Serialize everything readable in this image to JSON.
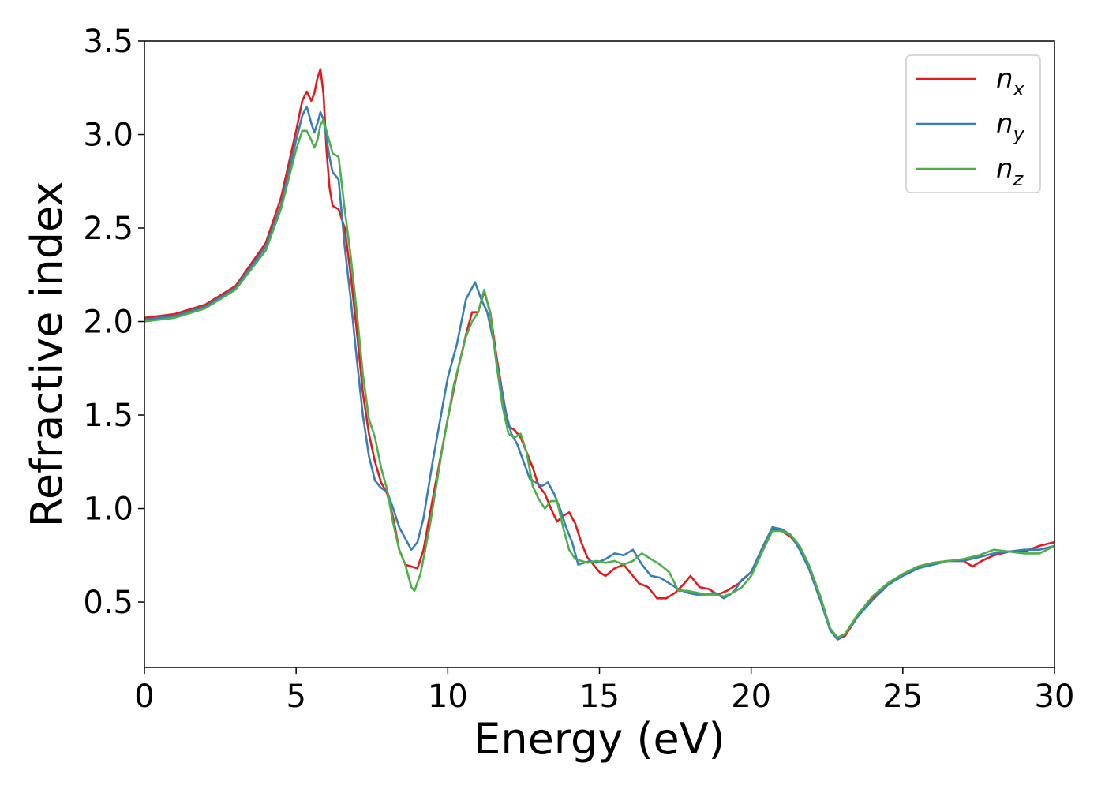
{
  "chart_data": {
    "type": "line",
    "title": "",
    "xlabel": "Energy (eV)",
    "ylabel": "Refractive index",
    "xlim": [
      0,
      30
    ],
    "ylim": [
      0.15,
      3.5
    ],
    "xticks": [
      0,
      5,
      10,
      15,
      20,
      25,
      30
    ],
    "xtick_labels": [
      "0",
      "5",
      "10",
      "15",
      "20",
      "25",
      "30"
    ],
    "yticks": [
      0.5,
      1.0,
      1.5,
      2.0,
      2.5,
      3.0,
      3.5
    ],
    "ytick_labels": [
      "0.5",
      "1.0",
      "1.5",
      "2.0",
      "2.5",
      "3.0",
      "3.5"
    ],
    "grid": false,
    "legend_position": "top-right",
    "series": [
      {
        "name": "n_x",
        "label_main": "n",
        "label_sub": "x",
        "color": "#e41a1c",
        "points": [
          [
            0,
            2.02
          ],
          [
            1,
            2.04
          ],
          [
            2,
            2.09
          ],
          [
            3,
            2.19
          ],
          [
            4,
            2.42
          ],
          [
            4.5,
            2.66
          ],
          [
            5,
            3.02
          ],
          [
            5.2,
            3.18
          ],
          [
            5.35,
            3.23
          ],
          [
            5.5,
            3.18
          ],
          [
            5.6,
            3.22
          ],
          [
            5.7,
            3.3
          ],
          [
            5.8,
            3.35
          ],
          [
            5.9,
            3.22
          ],
          [
            6.0,
            2.92
          ],
          [
            6.1,
            2.72
          ],
          [
            6.2,
            2.62
          ],
          [
            6.4,
            2.6
          ],
          [
            6.6,
            2.5
          ],
          [
            6.8,
            2.25
          ],
          [
            7.0,
            1.95
          ],
          [
            7.2,
            1.62
          ],
          [
            7.4,
            1.4
          ],
          [
            7.6,
            1.25
          ],
          [
            7.8,
            1.14
          ],
          [
            8.0,
            1.08
          ],
          [
            8.2,
            0.95
          ],
          [
            8.4,
            0.78
          ],
          [
            8.6,
            0.7
          ],
          [
            8.8,
            0.69
          ],
          [
            9.0,
            0.68
          ],
          [
            9.2,
            0.78
          ],
          [
            9.5,
            1.05
          ],
          [
            10.0,
            1.48
          ],
          [
            10.3,
            1.72
          ],
          [
            10.6,
            1.93
          ],
          [
            10.8,
            2.05
          ],
          [
            11.0,
            2.05
          ],
          [
            11.2,
            2.16
          ],
          [
            11.4,
            2.05
          ],
          [
            11.6,
            1.82
          ],
          [
            11.8,
            1.62
          ],
          [
            12.0,
            1.44
          ],
          [
            12.2,
            1.42
          ],
          [
            12.4,
            1.38
          ],
          [
            12.6,
            1.3
          ],
          [
            12.8,
            1.22
          ],
          [
            13.0,
            1.12
          ],
          [
            13.2,
            1.08
          ],
          [
            13.4,
            1.0
          ],
          [
            13.6,
            0.93
          ],
          [
            13.8,
            0.96
          ],
          [
            14.0,
            0.98
          ],
          [
            14.2,
            0.92
          ],
          [
            14.4,
            0.82
          ],
          [
            14.6,
            0.74
          ],
          [
            14.8,
            0.7
          ],
          [
            15.0,
            0.66
          ],
          [
            15.2,
            0.64
          ],
          [
            15.5,
            0.68
          ],
          [
            15.8,
            0.7
          ],
          [
            16.0,
            0.66
          ],
          [
            16.3,
            0.6
          ],
          [
            16.6,
            0.58
          ],
          [
            16.9,
            0.52
          ],
          [
            17.2,
            0.52
          ],
          [
            17.5,
            0.55
          ],
          [
            17.8,
            0.6
          ],
          [
            18.0,
            0.64
          ],
          [
            18.3,
            0.58
          ],
          [
            18.6,
            0.57
          ],
          [
            18.9,
            0.54
          ],
          [
            19.2,
            0.56
          ],
          [
            19.6,
            0.6
          ],
          [
            20.0,
            0.66
          ],
          [
            20.4,
            0.8
          ],
          [
            20.7,
            0.89
          ],
          [
            21.0,
            0.88
          ],
          [
            21.3,
            0.85
          ],
          [
            21.6,
            0.79
          ],
          [
            21.9,
            0.7
          ],
          [
            22.3,
            0.52
          ],
          [
            22.6,
            0.36
          ],
          [
            22.85,
            0.3
          ],
          [
            23.1,
            0.32
          ],
          [
            23.5,
            0.42
          ],
          [
            24.0,
            0.52
          ],
          [
            24.5,
            0.6
          ],
          [
            25.0,
            0.65
          ],
          [
            25.5,
            0.69
          ],
          [
            26.0,
            0.71
          ],
          [
            26.5,
            0.72
          ],
          [
            27.0,
            0.72
          ],
          [
            27.3,
            0.69
          ],
          [
            27.6,
            0.72
          ],
          [
            28.0,
            0.75
          ],
          [
            28.5,
            0.77
          ],
          [
            29.0,
            0.77
          ],
          [
            29.5,
            0.8
          ],
          [
            30.0,
            0.82
          ]
        ]
      },
      {
        "name": "n_y",
        "label_main": "n",
        "label_sub": "y",
        "color": "#377eb8",
        "points": [
          [
            0,
            2.01
          ],
          [
            1,
            2.03
          ],
          [
            2,
            2.08
          ],
          [
            3,
            2.18
          ],
          [
            4,
            2.4
          ],
          [
            4.5,
            2.62
          ],
          [
            5,
            2.97
          ],
          [
            5.2,
            3.1
          ],
          [
            5.35,
            3.15
          ],
          [
            5.5,
            3.06
          ],
          [
            5.6,
            3.01
          ],
          [
            5.7,
            3.06
          ],
          [
            5.8,
            3.12
          ],
          [
            5.9,
            3.08
          ],
          [
            6.0,
            2.98
          ],
          [
            6.1,
            2.88
          ],
          [
            6.2,
            2.8
          ],
          [
            6.4,
            2.76
          ],
          [
            6.6,
            2.4
          ],
          [
            6.8,
            2.12
          ],
          [
            7.0,
            1.8
          ],
          [
            7.2,
            1.5
          ],
          [
            7.4,
            1.28
          ],
          [
            7.6,
            1.15
          ],
          [
            7.8,
            1.11
          ],
          [
            8.0,
            1.09
          ],
          [
            8.2,
            1.0
          ],
          [
            8.4,
            0.9
          ],
          [
            8.6,
            0.84
          ],
          [
            8.8,
            0.78
          ],
          [
            9.0,
            0.82
          ],
          [
            9.2,
            0.95
          ],
          [
            9.5,
            1.25
          ],
          [
            10.0,
            1.7
          ],
          [
            10.3,
            1.88
          ],
          [
            10.6,
            2.12
          ],
          [
            10.9,
            2.21
          ],
          [
            11.1,
            2.12
          ],
          [
            11.3,
            2.05
          ],
          [
            11.5,
            1.9
          ],
          [
            11.7,
            1.7
          ],
          [
            11.9,
            1.52
          ],
          [
            12.1,
            1.4
          ],
          [
            12.3,
            1.34
          ],
          [
            12.5,
            1.25
          ],
          [
            12.7,
            1.16
          ],
          [
            12.9,
            1.14
          ],
          [
            13.1,
            1.12
          ],
          [
            13.3,
            1.14
          ],
          [
            13.5,
            1.08
          ],
          [
            13.7,
            1.0
          ],
          [
            13.9,
            0.9
          ],
          [
            14.1,
            0.82
          ],
          [
            14.3,
            0.7
          ],
          [
            14.5,
            0.71
          ],
          [
            14.7,
            0.72
          ],
          [
            14.9,
            0.71
          ],
          [
            15.2,
            0.73
          ],
          [
            15.5,
            0.76
          ],
          [
            15.8,
            0.75
          ],
          [
            16.1,
            0.78
          ],
          [
            16.4,
            0.7
          ],
          [
            16.7,
            0.64
          ],
          [
            17.0,
            0.63
          ],
          [
            17.3,
            0.6
          ],
          [
            17.6,
            0.57
          ],
          [
            17.9,
            0.55
          ],
          [
            18.2,
            0.54
          ],
          [
            18.5,
            0.54
          ],
          [
            18.8,
            0.55
          ],
          [
            19.1,
            0.52
          ],
          [
            19.4,
            0.55
          ],
          [
            19.7,
            0.62
          ],
          [
            20.0,
            0.66
          ],
          [
            20.4,
            0.8
          ],
          [
            20.7,
            0.9
          ],
          [
            21.0,
            0.89
          ],
          [
            21.3,
            0.86
          ],
          [
            21.6,
            0.78
          ],
          [
            21.9,
            0.68
          ],
          [
            22.3,
            0.5
          ],
          [
            22.6,
            0.35
          ],
          [
            22.85,
            0.3
          ],
          [
            23.1,
            0.33
          ],
          [
            23.5,
            0.42
          ],
          [
            24.0,
            0.51
          ],
          [
            24.5,
            0.59
          ],
          [
            25.0,
            0.64
          ],
          [
            25.5,
            0.68
          ],
          [
            26.0,
            0.7
          ],
          [
            26.5,
            0.72
          ],
          [
            27.0,
            0.72
          ],
          [
            27.5,
            0.74
          ],
          [
            28.0,
            0.76
          ],
          [
            28.5,
            0.77
          ],
          [
            29.0,
            0.78
          ],
          [
            29.5,
            0.78
          ],
          [
            30.0,
            0.8
          ]
        ]
      },
      {
        "name": "n_z",
        "label_main": "n",
        "label_sub": "z",
        "color": "#4daf4a",
        "points": [
          [
            0,
            2.0
          ],
          [
            1,
            2.02
          ],
          [
            2,
            2.07
          ],
          [
            3,
            2.17
          ],
          [
            4,
            2.38
          ],
          [
            4.5,
            2.6
          ],
          [
            5,
            2.92
          ],
          [
            5.2,
            3.02
          ],
          [
            5.35,
            3.02
          ],
          [
            5.5,
            2.97
          ],
          [
            5.6,
            2.93
          ],
          [
            5.7,
            2.97
          ],
          [
            5.8,
            3.05
          ],
          [
            5.9,
            3.08
          ],
          [
            6.0,
            3.02
          ],
          [
            6.2,
            2.9
          ],
          [
            6.4,
            2.88
          ],
          [
            6.6,
            2.6
          ],
          [
            6.8,
            2.35
          ],
          [
            7.0,
            2.05
          ],
          [
            7.2,
            1.72
          ],
          [
            7.4,
            1.48
          ],
          [
            7.6,
            1.38
          ],
          [
            7.8,
            1.22
          ],
          [
            8.0,
            1.1
          ],
          [
            8.2,
            0.92
          ],
          [
            8.4,
            0.78
          ],
          [
            8.6,
            0.7
          ],
          [
            8.8,
            0.58
          ],
          [
            8.9,
            0.56
          ],
          [
            9.1,
            0.65
          ],
          [
            9.4,
            0.9
          ],
          [
            9.8,
            1.3
          ],
          [
            10.2,
            1.66
          ],
          [
            10.6,
            1.92
          ],
          [
            10.8,
            2.0
          ],
          [
            11.0,
            2.05
          ],
          [
            11.2,
            2.17
          ],
          [
            11.4,
            2.04
          ],
          [
            11.6,
            1.78
          ],
          [
            11.8,
            1.55
          ],
          [
            12.0,
            1.4
          ],
          [
            12.2,
            1.38
          ],
          [
            12.4,
            1.4
          ],
          [
            12.6,
            1.3
          ],
          [
            12.8,
            1.12
          ],
          [
            13.0,
            1.05
          ],
          [
            13.2,
            1.0
          ],
          [
            13.4,
            1.04
          ],
          [
            13.6,
            1.04
          ],
          [
            13.8,
            0.9
          ],
          [
            14.0,
            0.78
          ],
          [
            14.2,
            0.73
          ],
          [
            14.4,
            0.72
          ],
          [
            14.6,
            0.71
          ],
          [
            14.9,
            0.72
          ],
          [
            15.2,
            0.71
          ],
          [
            15.5,
            0.72
          ],
          [
            15.8,
            0.7
          ],
          [
            16.1,
            0.72
          ],
          [
            16.4,
            0.76
          ],
          [
            16.7,
            0.73
          ],
          [
            17.0,
            0.7
          ],
          [
            17.3,
            0.66
          ],
          [
            17.6,
            0.56
          ],
          [
            17.9,
            0.56
          ],
          [
            18.2,
            0.55
          ],
          [
            18.5,
            0.54
          ],
          [
            18.8,
            0.54
          ],
          [
            19.1,
            0.53
          ],
          [
            19.4,
            0.55
          ],
          [
            19.7,
            0.58
          ],
          [
            20.0,
            0.64
          ],
          [
            20.4,
            0.78
          ],
          [
            20.7,
            0.88
          ],
          [
            21.0,
            0.88
          ],
          [
            21.3,
            0.86
          ],
          [
            21.6,
            0.8
          ],
          [
            21.9,
            0.7
          ],
          [
            22.3,
            0.52
          ],
          [
            22.6,
            0.36
          ],
          [
            22.85,
            0.31
          ],
          [
            23.1,
            0.33
          ],
          [
            23.5,
            0.43
          ],
          [
            24.0,
            0.53
          ],
          [
            24.5,
            0.6
          ],
          [
            25.0,
            0.65
          ],
          [
            25.5,
            0.69
          ],
          [
            26.0,
            0.71
          ],
          [
            26.5,
            0.72
          ],
          [
            27.0,
            0.73
          ],
          [
            27.5,
            0.75
          ],
          [
            28.0,
            0.78
          ],
          [
            28.5,
            0.77
          ],
          [
            29.0,
            0.76
          ],
          [
            29.5,
            0.76
          ],
          [
            30.0,
            0.8
          ]
        ]
      }
    ]
  }
}
